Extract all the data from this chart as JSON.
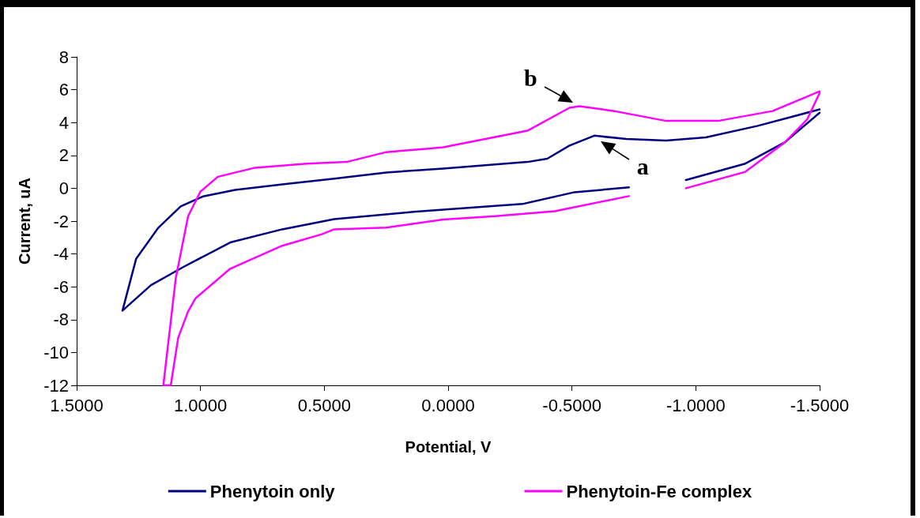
{
  "chart_data": {
    "type": "line",
    "xlabel": "Potential, V",
    "ylabel": "Current, uA",
    "xlim": [
      1.5,
      -1.5
    ],
    "xticks": [
      {
        "value": 1.5,
        "label": "1.5000"
      },
      {
        "value": 1,
        "label": "1.0000"
      },
      {
        "value": 0.5,
        "label": "0.5000"
      },
      {
        "value": 0,
        "label": "0.0000"
      },
      {
        "value": -0.5,
        "label": "-0.5000"
      },
      {
        "value": -1,
        "label": "-1.0000"
      },
      {
        "value": -1.5,
        "label": "-1.5000"
      }
    ],
    "ylim": [
      -12,
      8
    ],
    "yticks": [
      -12,
      -10,
      -8,
      -6,
      -4,
      -2,
      0,
      2,
      4,
      6,
      8
    ],
    "grid": false,
    "legend": "bottom",
    "marker": "none",
    "line_style": "solid",
    "series": [
      {
        "name": "Phenytoin only",
        "color": "#000080",
        "x": [
          -1.5,
          -1.36,
          -1.2,
          -0.96,
          -0.9,
          -0.73,
          -0.51,
          -0.3,
          0.02,
          0.14,
          0.46,
          0.67,
          0.88,
          1.07,
          1.2,
          1.315,
          1.26,
          1.17,
          1.08,
          0.99,
          0.86,
          0.67,
          0.46,
          0.25,
          0.02,
          -0.32,
          -0.4,
          -0.49,
          -0.59,
          -0.72,
          -0.88,
          -1.04,
          -1.25,
          -1.5
        ],
        "values": [
          4.6,
          2.8,
          1.5,
          0.5,
          null,
          0.05,
          -0.24,
          -0.96,
          -1.3,
          -1.44,
          -1.88,
          -2.5,
          -3.3,
          -4.8,
          -5.9,
          -7.45,
          -4.3,
          -2.4,
          -1.1,
          -0.5,
          -0.1,
          0.24,
          0.58,
          0.96,
          1.2,
          1.6,
          1.8,
          2.6,
          3.2,
          3.0,
          2.9,
          3.1,
          3.8,
          4.8
        ]
      },
      {
        "name": "Phenytoin-Fe complex",
        "color": "#ff00ff",
        "x": [
          -1.5,
          -1.45,
          -1.36,
          -1.2,
          -0.96,
          -0.9,
          -0.73,
          -0.43,
          -0.19,
          0.02,
          0.25,
          0.46,
          0.51,
          0.67,
          0.88,
          1.02,
          1.05,
          1.09,
          1.12,
          1.15,
          1.1,
          1.05,
          1.0,
          0.93,
          0.78,
          0.57,
          0.41,
          0.25,
          0.09,
          0.02,
          -0.32,
          -0.49,
          -0.53,
          -0.67,
          -0.88,
          -1.09,
          -1.31,
          -1.5
        ],
        "values": [
          5.8,
          4.2,
          2.8,
          1.0,
          0.0,
          null,
          -0.48,
          -1.4,
          -1.7,
          -1.9,
          -2.4,
          -2.5,
          -2.8,
          -3.5,
          -4.9,
          -6.7,
          -7.5,
          -9.1,
          -12,
          -12,
          -5.5,
          -1.7,
          -0.2,
          0.7,
          1.25,
          1.5,
          1.6,
          2.2,
          2.4,
          2.5,
          3.5,
          4.9,
          5.0,
          4.7,
          4.1,
          4.1,
          4.7,
          5.9
        ]
      }
    ],
    "annotations": [
      {
        "text": "a",
        "x": -0.59,
        "y": 3.2
      },
      {
        "text": "b",
        "x": -0.53,
        "y": 5.0
      }
    ]
  }
}
